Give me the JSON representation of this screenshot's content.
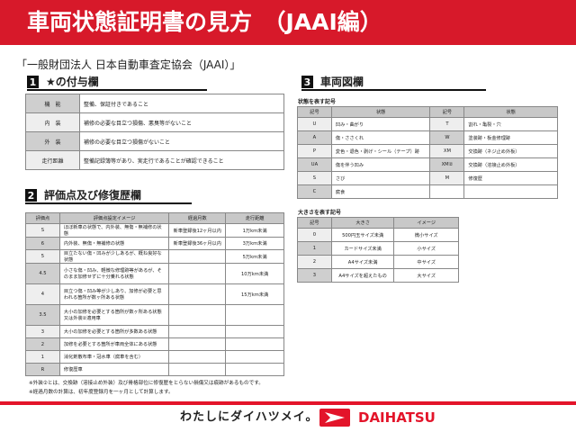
{
  "header": {
    "title": "車両状態証明書の見方　（JAAI編）"
  },
  "org": "「一般財団法人 日本自動車査定協会（JAAI）」",
  "section1": {
    "num": "1",
    "title": "★の付与欄",
    "rows": [
      [
        "機　能",
        "整備、保証付きであること"
      ],
      [
        "内　装",
        "補修の必要な目立つ損傷、悪臭等がないこと"
      ],
      [
        "外　装",
        "補修の必要な目立つ損傷がないこと"
      ],
      [
        "走行距離",
        "整備記録簿等があり、実走行であることが確認できること"
      ]
    ]
  },
  "section2": {
    "num": "2",
    "title": "評価点及び修復歴欄",
    "headers": [
      "評価点",
      "評価点設定イメージ",
      "経過月数",
      "走行距離"
    ],
    "rows": [
      [
        "S",
        "ほぼ新車の状態で、内外装、無傷・無補修の状態",
        "新車登録後12ヶ月以内",
        "1万km未満"
      ],
      [
        "6",
        "内外装、無傷・無補修の状態",
        "新車登録後36ヶ月以内",
        "3万km未満"
      ],
      [
        "5",
        "目立たない傷・凹みが少しあるが、概ね良好な状態",
        "",
        "5万km未満"
      ],
      [
        "4.5",
        "小さな傷・凹み、軽微な修理跡等があるが、そのまま加修せずに十分乗れる状態",
        "",
        "10万km未満"
      ],
      [
        "4",
        "目立つ傷・凹み等が少しあり、加修が必要と思われる箇所が数ヶ所ある状態",
        "",
        "15万km未満"
      ],
      [
        "3.5",
        "大小の加修を必要とする箇所が数ヶ所ある状態又は外装②適用車",
        "",
        ""
      ],
      [
        "3",
        "大小の加修を必要とする箇所が多数ある状態",
        "",
        ""
      ],
      [
        "2",
        "加修を必要とする箇所が車両全体にある状態",
        "",
        ""
      ],
      [
        "1",
        "消化剤散布車・冠水車（腐車を含む）",
        "",
        ""
      ],
      [
        "R",
        "修復歴車",
        "",
        ""
      ]
    ],
    "notes": [
      "※外装②とは、交換跡（溶接止め外装）及び骨格部位に修復歴をとらない損傷又は痕跡があるものです。",
      "※経過月数の計算は、初年度登録月を一ヶ月として計算します。"
    ]
  },
  "section3": {
    "num": "3",
    "title": "車両図欄",
    "state_label": "状態を表す記号",
    "state_headers": [
      "記号",
      "状態",
      "記号",
      "状態"
    ],
    "state_rows": [
      [
        "U",
        "凹み・曲がり",
        "T",
        "割れ・亀裂・穴"
      ],
      [
        "A",
        "傷・ささくれ",
        "W",
        "塗装跡・板金修理跡"
      ],
      [
        "P",
        "変色・退色・剥げ・シール（テープ）跡",
        "XM",
        "交換跡（ネジ止め外板）"
      ],
      [
        "UA",
        "傷を伴う凹み",
        "XM②",
        "交換跡（溶接止め外板）"
      ],
      [
        "S",
        "さび",
        "M",
        "修復歴"
      ],
      [
        "C",
        "腐食",
        "",
        ""
      ]
    ],
    "size_label": "大きさを表す記号",
    "size_headers": [
      "記号",
      "大きさ",
      "イメージ"
    ],
    "size_rows": [
      [
        "0",
        "500円玉サイズ未満",
        "微小サイズ"
      ],
      [
        "1",
        "カードサイズ未満",
        "小サイズ"
      ],
      [
        "2",
        "A4サイズ未満",
        "中サイズ"
      ],
      [
        "3",
        "A4サイズを超えたもの",
        "大サイズ"
      ]
    ]
  },
  "footer": {
    "slogan": "わたしにダイハツメイ。",
    "brand": "DAIHATSU"
  },
  "colors": {
    "accent": "#d7192a"
  }
}
